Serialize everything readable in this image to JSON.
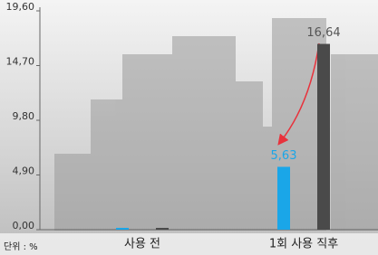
{
  "chart_data": {
    "type": "bar",
    "categories": [
      "사용 전",
      "1회 사용 직후"
    ],
    "series": [
      {
        "color": "#1aa6e8",
        "values": [
          0,
          5.63
        ],
        "value_labels": [
          null,
          "5,63"
        ]
      },
      {
        "color": "#4a4a4a",
        "values": [
          0,
          16.64
        ],
        "value_labels": [
          null,
          "16,64"
        ]
      }
    ],
    "ylim": [
      0,
      19.6
    ],
    "yticks": [
      {
        "value": 0,
        "label": "0,00"
      },
      {
        "value": 4.9,
        "label": "4,90"
      },
      {
        "value": 9.8,
        "label": "9,80"
      },
      {
        "value": 14.7,
        "label": "14,70"
      },
      {
        "value": 19.6,
        "label": "19,60"
      }
    ],
    "unit_label": "단위 : %"
  }
}
